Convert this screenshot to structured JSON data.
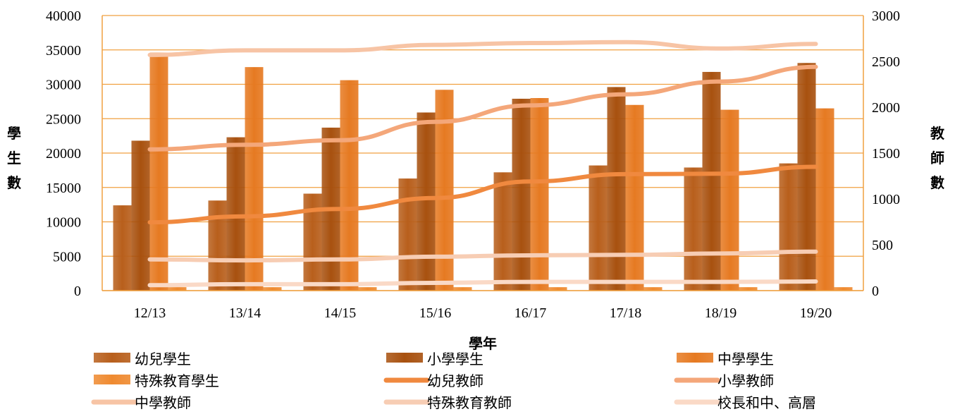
{
  "chart_data": {
    "type": "bar",
    "xlabel": "學年",
    "ylabel_left": "學生數",
    "ylabel_right": "教師數",
    "ylim_left": [
      0,
      40000
    ],
    "ylim_right": [
      0,
      3000
    ],
    "yticks_left": [
      0,
      5000,
      10000,
      15000,
      20000,
      25000,
      30000,
      35000,
      40000
    ],
    "yticks_right": [
      0,
      500,
      1000,
      1500,
      2000,
      2500,
      3000
    ],
    "grid": true,
    "legend_position": "bottom",
    "categories": [
      "12/13",
      "13/14",
      "14/15",
      "15/16",
      "16/17",
      "17/18",
      "18/19",
      "19/20"
    ],
    "bar_series": [
      {
        "name": "幼兒學生",
        "axis": "left",
        "values": [
          12400,
          13100,
          14100,
          16300,
          17200,
          18200,
          17900,
          18500
        ],
        "color": "#b85f1c"
      },
      {
        "name": "小學學生",
        "axis": "left",
        "values": [
          21800,
          22300,
          23700,
          25900,
          27900,
          29600,
          31800,
          33100
        ],
        "color": "#a8510f"
      },
      {
        "name": "中學學生",
        "axis": "left",
        "values": [
          34600,
          32500,
          30600,
          29200,
          28000,
          27000,
          26300,
          26500
        ],
        "color": "#e67a22"
      },
      {
        "name": "特殊教育學生",
        "axis": "left",
        "values": [
          500,
          500,
          500,
          500,
          500,
          500,
          500,
          500
        ],
        "color": "#ef8a30"
      }
    ],
    "line_series": [
      {
        "name": "幼兒教師",
        "axis": "right",
        "values": [
          745,
          810,
          890,
          1010,
          1190,
          1270,
          1275,
          1350
        ],
        "color": "#f0893f"
      },
      {
        "name": "小學教師",
        "axis": "right",
        "values": [
          1540,
          1590,
          1640,
          1840,
          2020,
          2140,
          2280,
          2440
        ],
        "color": "#f4a77a"
      },
      {
        "name": "中學教師",
        "axis": "right",
        "values": [
          2570,
          2620,
          2620,
          2680,
          2700,
          2710,
          2640,
          2690
        ],
        "color": "#f7c4a5"
      },
      {
        "name": "特殊教育教師",
        "axis": "right",
        "values": [
          340,
          330,
          340,
          370,
          385,
          390,
          405,
          425
        ],
        "color": "#f7cdb4"
      },
      {
        "name": "校長和中、高層",
        "axis": "right",
        "values": [
          60,
          70,
          70,
          85,
          95,
          95,
          95,
          100
        ],
        "color": "#fad9c6"
      }
    ],
    "colors": {
      "grid": "#f0a040",
      "axis": "#f0a040"
    }
  }
}
